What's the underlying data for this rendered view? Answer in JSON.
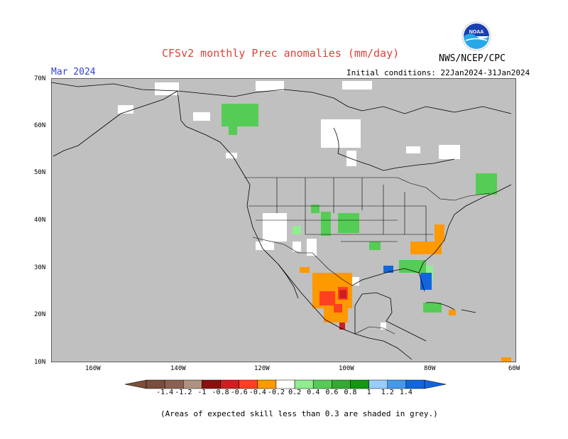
{
  "title": "CFSv2 monthly Prec anomalies (mm/day)",
  "agency": "NWS/NCEP/CPC",
  "logo_text": "NOAA",
  "month_label": "Mar 2024",
  "initial_conditions": "Initial conditions: 22Jan2024-31Jan2024",
  "y_ticks": [
    "70N",
    "60N",
    "50N",
    "40N",
    "30N",
    "20N",
    "10N"
  ],
  "x_ticks": [
    "160W",
    "140W",
    "120W",
    "100W",
    "80W",
    "60W"
  ],
  "colorbar": {
    "labels": [
      "-1.4",
      "-1.2",
      "-1",
      "-0.8",
      "-0.6",
      "-0.4",
      "-0.2",
      "0.2",
      "0.4",
      "0.6",
      "0.8",
      "1",
      "1.2",
      "1.4"
    ],
    "colors": [
      "#7a4e3a",
      "#8c6050",
      "#b09080",
      "#8a1010",
      "#cc2020",
      "#ff4020",
      "#ff9900",
      "#ffffff",
      "#90ee90",
      "#55cc55",
      "#33aa33",
      "#119911",
      "#99ccff",
      "#4499ee",
      "#1166dd"
    ],
    "grey_color": "#c0c0c0"
  },
  "note": "(Areas of expected skill less than 0.3 are shaded in grey.)"
}
